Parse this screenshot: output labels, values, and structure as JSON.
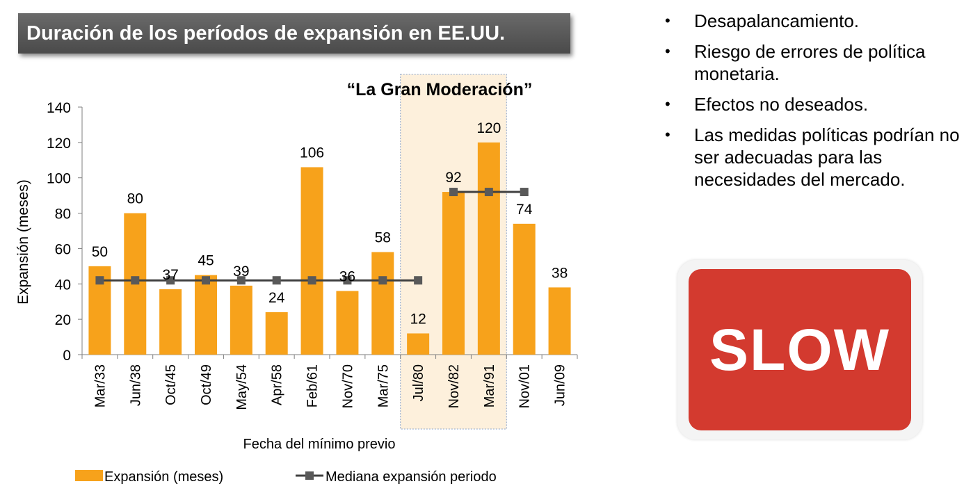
{
  "banner": {
    "title": "Duración de los períodos de expansión en EE.UU."
  },
  "chart_data": {
    "type": "bar",
    "annotation": "“La Gran Moderación”",
    "ylabel": "Expansión (meses)",
    "xlabel": "Fecha del mínimo previo",
    "ylim": [
      0,
      140
    ],
    "yticks": [
      0,
      20,
      40,
      60,
      80,
      100,
      120,
      140
    ],
    "categories": [
      "Mar/33",
      "Jun/38",
      "Oct/45",
      "Oct/49",
      "May/54",
      "Apr/58",
      "Feb/61",
      "Nov/70",
      "Mar/75",
      "Jul/80",
      "Nov/82",
      "Mar/91",
      "Nov/01",
      "Jun/09"
    ],
    "series": [
      {
        "name": "Expansión (meses)",
        "type": "bar",
        "color": "#f7a21b",
        "values": [
          50,
          80,
          37,
          45,
          39,
          24,
          106,
          36,
          58,
          12,
          92,
          120,
          74,
          38
        ]
      },
      {
        "name": "Mediana expansión periodo",
        "type": "line",
        "color": "#404040",
        "values": [
          42,
          42,
          42,
          42,
          42,
          42,
          42,
          42,
          42,
          42,
          92,
          92,
          92,
          null
        ]
      }
    ],
    "highlight_range": [
      "Jul/80",
      "Mar/91"
    ],
    "highlight_color": "#fdf0dc",
    "grid": false,
    "legend_position": "bottom"
  },
  "bullets": [
    "Desapalancamiento.",
    "Riesgo de errores de política monetaria.",
    "Efectos no deseados.",
    "Las medidas políticas podrían no ser adecuadas para las necesidades del mercado."
  ],
  "sign": {
    "text": "SLOW",
    "color": "#d33a2f"
  }
}
